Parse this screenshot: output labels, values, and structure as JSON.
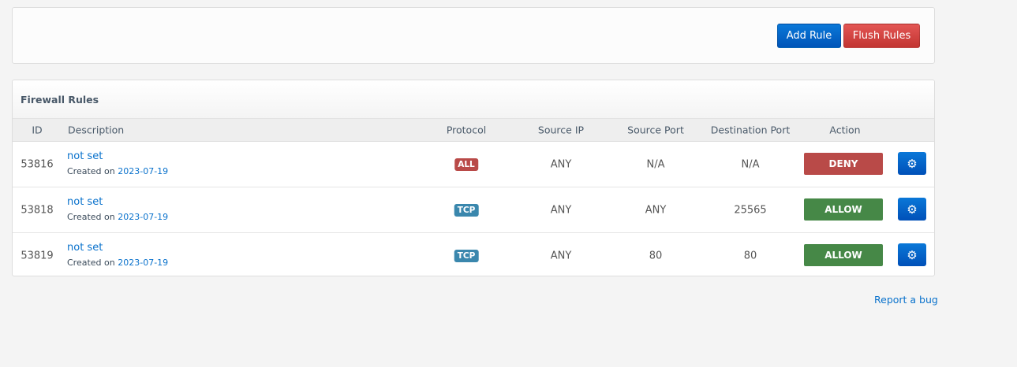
{
  "toolbar": {
    "add_label": "Add Rule",
    "flush_label": "Flush Rules"
  },
  "panel": {
    "title": "Firewall Rules"
  },
  "columns": [
    "ID",
    "Description",
    "Protocol",
    "Source IP",
    "Source Port",
    "Destination Port",
    "Action"
  ],
  "rules": [
    {
      "id": "53816",
      "description": "not set",
      "created_prefix": "Created on",
      "created_date": "2023-07-19",
      "protocol": "ALL",
      "protocol_color": "#b94a48",
      "source_ip": "ANY",
      "source_port": "N/A",
      "destination_port": "N/A",
      "action": "DENY",
      "action_color": "#b94a48"
    },
    {
      "id": "53818",
      "description": "not set",
      "created_prefix": "Created on",
      "created_date": "2023-07-19",
      "protocol": "TCP",
      "protocol_color": "#3a87ad",
      "source_ip": "ANY",
      "source_port": "ANY",
      "destination_port": "25565",
      "action": "ALLOW",
      "action_color": "#468847"
    },
    {
      "id": "53819",
      "description": "not set",
      "created_prefix": "Created on",
      "created_date": "2023-07-19",
      "protocol": "TCP",
      "protocol_color": "#3a87ad",
      "source_ip": "ANY",
      "source_port": "80",
      "destination_port": "80",
      "action": "ALLOW",
      "action_color": "#468847"
    }
  ],
  "footer": {
    "report_bug": "Report a bug"
  }
}
